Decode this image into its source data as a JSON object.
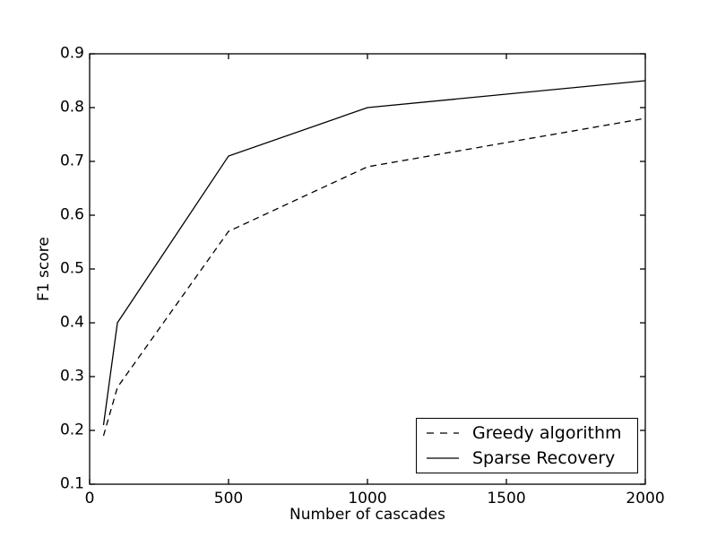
{
  "figure": {
    "background_color": "#ffffff",
    "axes_color": "#000000",
    "text_color": "#000000"
  },
  "chart_data": {
    "type": "line",
    "title": "",
    "xlabel": "Number of cascades",
    "ylabel": "F1 score",
    "xlim": [
      0,
      2000
    ],
    "ylim": [
      0.1,
      0.9
    ],
    "xtick_labels": [
      "0",
      "500",
      "1000",
      "1500",
      "2000"
    ],
    "ytick_labels": [
      "0.1",
      "0.2",
      "0.3",
      "0.4",
      "0.5",
      "0.6",
      "0.7",
      "0.8",
      "0.9"
    ],
    "grid": false,
    "legend_position": "lower right",
    "series": [
      {
        "name": "Greedy algorithm",
        "style": "dashed",
        "color": "#000000",
        "x": [
          50,
          100,
          500,
          1000,
          2000
        ],
        "y": [
          0.19,
          0.28,
          0.57,
          0.69,
          0.78
        ]
      },
      {
        "name": "Sparse Recovery",
        "style": "solid",
        "color": "#000000",
        "x": [
          50,
          100,
          500,
          1000,
          2000
        ],
        "y": [
          0.21,
          0.4,
          0.71,
          0.8,
          0.85
        ]
      }
    ]
  }
}
